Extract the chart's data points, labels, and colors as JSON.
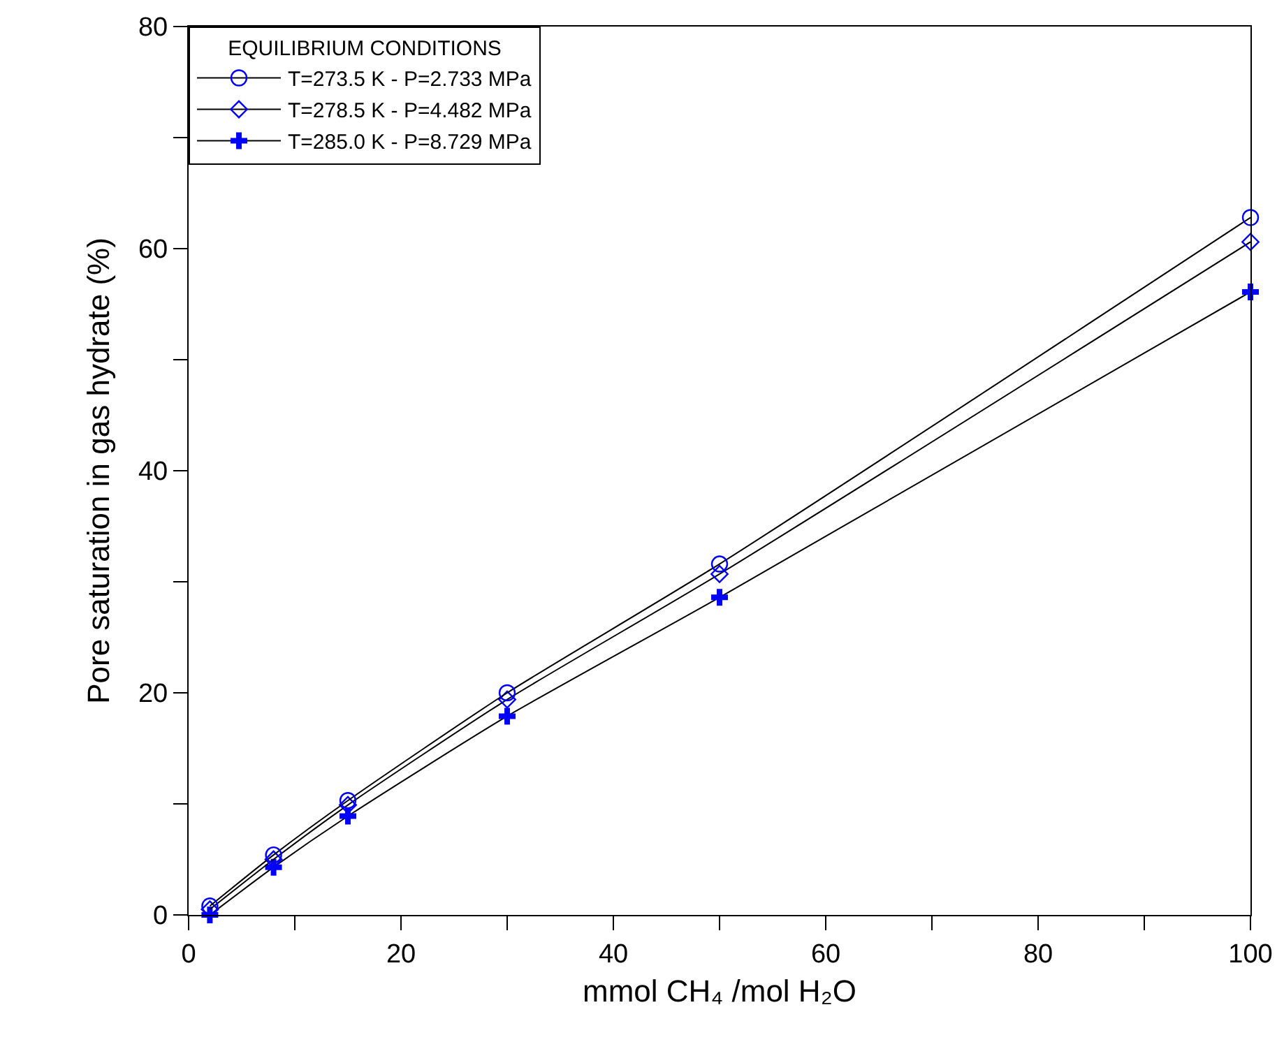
{
  "chart_data": {
    "type": "line",
    "xlabel": "mmol CH₄ /mol H₂O",
    "ylabel": "Pore saturation in gas hydrate (%)",
    "legend_title": "EQUILIBRIUM CONDITIONS",
    "x": [
      2,
      8,
      15,
      30,
      50,
      100
    ],
    "series": [
      {
        "name": "T=273.5 K - P=2.733 MPa",
        "color": "#0000ff",
        "marker": "circle",
        "values": [
          0.8,
          5.4,
          10.3,
          20.0,
          31.6,
          62.8
        ]
      },
      {
        "name": "T=278.5 K - P=4.482 MPa",
        "color": "#0000ff",
        "marker": "diamond",
        "values": [
          0.5,
          5.0,
          9.9,
          19.4,
          30.7,
          60.6
        ]
      },
      {
        "name": "T=285.0 K - P=8.729 MPa",
        "color": "#0000ff",
        "marker": "cross",
        "values": [
          0.0,
          4.3,
          8.9,
          17.9,
          28.6,
          56.1
        ]
      }
    ],
    "xlim": [
      0,
      100
    ],
    "xticks": [
      0,
      {
        "value": 10,
        "label": null
      },
      20,
      {
        "value": 30,
        "label": null
      },
      40,
      {
        "value": 50,
        "label": null
      },
      60,
      {
        "value": 70,
        "label": null
      },
      80,
      {
        "value": 90,
        "label": null
      },
      100
    ],
    "ylim": [
      0,
      80
    ],
    "yticks": [
      0,
      {
        "value": 10,
        "label": null
      },
      20,
      {
        "value": 30,
        "label": null
      },
      40,
      {
        "value": 50,
        "label": null
      },
      60,
      {
        "value": 70,
        "label": null
      },
      80
    ],
    "grid": false,
    "legend": "top left",
    "line_style": "solid"
  }
}
